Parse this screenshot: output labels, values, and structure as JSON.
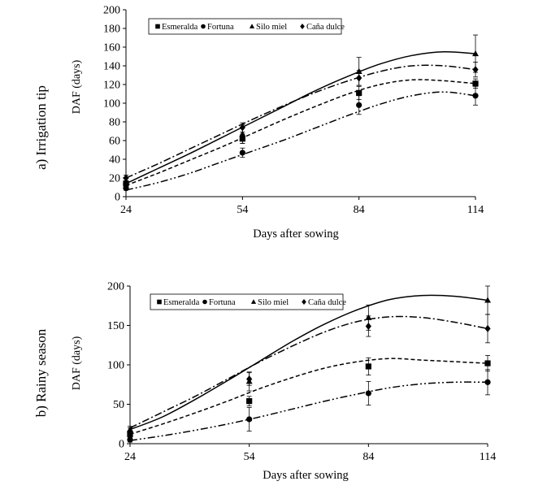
{
  "chart_data": [
    {
      "type": "line",
      "panel_label": "a) Irrigation tip",
      "title": "",
      "xlabel": "Days after sowing",
      "ylabel": "DAF  (days)",
      "x": [
        24,
        54,
        84,
        114
      ],
      "xticks": [
        "24",
        "54",
        "84",
        "114"
      ],
      "xlim": [
        24,
        114
      ],
      "ylim": [
        0,
        200
      ],
      "yticks": [
        "0",
        "20",
        "40",
        "60",
        "80",
        "100",
        "120",
        "140",
        "160",
        "180",
        "200"
      ],
      "grid": false,
      "legend_position": "top",
      "series": [
        {
          "name": "Esmeralda",
          "marker": "square",
          "dash": "dash",
          "values": [
            14,
            62,
            111,
            121
          ],
          "err": [
            3,
            5,
            7,
            5
          ],
          "fit": [
            12,
            25,
            39,
            53,
            68,
            83,
            97,
            110,
            120,
            125,
            124,
            121
          ]
        },
        {
          "name": "Fortuna",
          "marker": "circle",
          "dash": "dashdotdot",
          "values": [
            9,
            47,
            98,
            108
          ],
          "err": [
            2,
            5,
            10,
            10
          ],
          "fit": [
            7,
            15,
            25,
            37,
            49,
            61,
            74,
            87,
            99,
            108,
            112,
            108
          ]
        },
        {
          "name": "Silo miel",
          "marker": "triangle",
          "dash": "solid",
          "values": [
            16,
            67,
            134,
            153
          ],
          "err": [
            3,
            10,
            15,
            20
          ],
          "fit": [
            14,
            30,
            46,
            63,
            80,
            97,
            114,
            129,
            142,
            151,
            155,
            153
          ]
        },
        {
          "name": "Caña dulce",
          "marker": "diamond",
          "dash": "dashdot",
          "values": [
            20,
            74,
            127,
            136
          ],
          "err": [
            3,
            5,
            8,
            8
          ],
          "fit": [
            20,
            35,
            51,
            67,
            83,
            98,
            112,
            124,
            134,
            140,
            140,
            136
          ]
        }
      ]
    },
    {
      "type": "line",
      "panel_label": "b) Rainy season",
      "title": "",
      "xlabel": "Days after sowing",
      "ylabel": "DAF (days)",
      "x": [
        24,
        54,
        84,
        114
      ],
      "xticks": [
        "24",
        "54",
        "84",
        "114"
      ],
      "xlim": [
        24,
        114
      ],
      "ylim": [
        0,
        200
      ],
      "yticks": [
        "0",
        "50",
        "100",
        "150",
        "200"
      ],
      "grid": false,
      "legend_position": "top",
      "series": [
        {
          "name": "Esmeralda",
          "marker": "square",
          "dash": "dash",
          "values": [
            12,
            54,
            98,
            102
          ],
          "err": [
            4,
            6,
            11,
            10
          ],
          "fit": [
            12,
            25,
            39,
            54,
            70,
            84,
            96,
            104,
            108,
            106,
            104,
            102
          ]
        },
        {
          "name": "Fortuna",
          "marker": "circle",
          "dash": "dashdotdot",
          "values": [
            5,
            31,
            64,
            78
          ],
          "err": [
            3,
            15,
            15,
            16
          ],
          "fit": [
            4,
            10,
            17,
            25,
            34,
            44,
            54,
            63,
            71,
            76,
            78,
            78
          ]
        },
        {
          "name": "Silo miel",
          "marker": "triangle",
          "dash": "solid",
          "values": [
            18,
            79,
            160,
            182
          ],
          "err": [
            4,
            12,
            16,
            18
          ],
          "fit": [
            18,
            34,
            56,
            80,
            105,
            130,
            152,
            170,
            183,
            188,
            187,
            182
          ]
        },
        {
          "name": "Caña dulce",
          "marker": "diamond",
          "dash": "dashdot",
          "values": [
            16,
            82,
            149,
            146
          ],
          "err": [
            4,
            8,
            13,
            18
          ],
          "fit": [
            20,
            40,
            60,
            82,
            104,
            124,
            142,
            155,
            161,
            160,
            154,
            146
          ]
        }
      ]
    }
  ]
}
